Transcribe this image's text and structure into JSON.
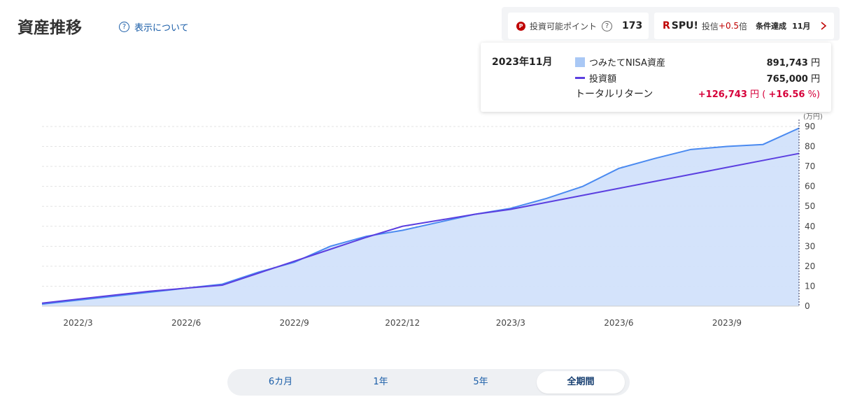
{
  "header": {
    "title": "資産推移",
    "help_icon": "?",
    "help_link": "表示について"
  },
  "points": {
    "icon": "P",
    "label": "投資可能ポイント",
    "help_icon": "?",
    "value": "173"
  },
  "spu": {
    "logo_r": "R",
    "logo": "SPU!",
    "label_prefix": "投信",
    "bonus": "+0.5",
    "label_suffix": "倍",
    "status": "条件達成",
    "month": "11月"
  },
  "tooltip": {
    "date": "2023年11月",
    "rows": [
      {
        "label": "つみたてNISA資産",
        "value": "891,743",
        "unit": "円"
      },
      {
        "label": "投資額",
        "value": "765,000",
        "unit": "円"
      }
    ],
    "return": {
      "label": "トータルリターン",
      "value": "+126,743",
      "unit": "円",
      "open": "(",
      "percent": "+16.56",
      "percent_unit": "%)"
    }
  },
  "chart_data": {
    "type": "area",
    "y_unit": "(万円)",
    "categories": [
      null,
      "2022/3",
      null,
      null,
      "2022/6",
      null,
      null,
      "2022/9",
      null,
      null,
      "2022/12",
      null,
      null,
      "2023/3",
      null,
      null,
      "2023/6",
      null,
      null,
      "2023/9",
      null,
      null
    ],
    "series": [
      {
        "name": "つみたてNISA資産",
        "color": "#4a8af0",
        "fill": "#cfe0fb",
        "values": [
          1,
          3,
          5,
          7,
          9,
          11,
          17,
          22,
          30,
          35,
          38,
          42,
          46,
          49,
          54,
          60,
          69,
          74,
          78.5,
          80,
          81,
          89.1743
        ]
      },
      {
        "name": "投資額",
        "color": "#5b3fe0",
        "values": [
          1.5,
          3.5,
          5.5,
          7.5,
          9,
          10.5,
          16.5,
          22.5,
          28.5,
          34.5,
          40,
          43,
          46,
          48.5,
          52,
          55.5,
          59,
          62.5,
          66,
          69.5,
          73,
          76.5
        ]
      }
    ],
    "ylim": [
      0,
      90
    ],
    "yticks": [
      0,
      10,
      20,
      30,
      40,
      50,
      60,
      70,
      80,
      90
    ],
    "grid": true
  },
  "tabs": {
    "items": [
      "6カ月",
      "1年",
      "5年",
      "全期間"
    ],
    "selected": 3
  }
}
